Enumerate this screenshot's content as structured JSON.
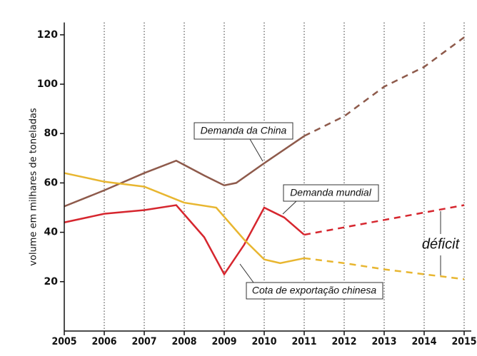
{
  "chart_data": {
    "type": "line",
    "y_label": "volume em milhares de toneladas",
    "xlim": [
      2005,
      2015
    ],
    "xticks": [
      2005,
      2006,
      2007,
      2008,
      2009,
      2010,
      2011,
      2012,
      2013,
      2014,
      2015
    ],
    "ylim": [
      0,
      125
    ],
    "yticks": [
      20,
      40,
      60,
      80,
      100,
      120
    ],
    "grid": "x",
    "forecast_start": 2011,
    "series": [
      {
        "name": "Demanda da China",
        "color": "#8e5a4b",
        "x": [
          2005,
          2006,
          2007,
          2007.8,
          2008.5,
          2009,
          2009.3,
          2010,
          2011,
          2012,
          2013,
          2014,
          2015
        ],
        "values": [
          50.5,
          57,
          64,
          69,
          63,
          59,
          60,
          68,
          79,
          87,
          99,
          107,
          119
        ]
      },
      {
        "name": "Demanda mundial",
        "color": "#d6262e",
        "x": [
          2005,
          2006,
          2007,
          2007.8,
          2008.5,
          2009,
          2009.5,
          2010,
          2010.5,
          2011,
          2012,
          2013,
          2014,
          2015
        ],
        "values": [
          44,
          47.5,
          49,
          51,
          38,
          23,
          35,
          50,
          46,
          39,
          42,
          45,
          48,
          51
        ]
      },
      {
        "name": "Cota de exportação chinesa",
        "color": "#e8b630",
        "x": [
          2005,
          2006,
          2007,
          2008,
          2008.8,
          2009.5,
          2010,
          2010.4,
          2011,
          2012,
          2013,
          2014,
          2015
        ],
        "values": [
          64,
          60.5,
          58.5,
          52,
          50,
          37,
          29,
          27.5,
          29.5,
          27.5,
          25,
          23,
          21
        ]
      }
    ],
    "annotations": [
      "déficit"
    ]
  }
}
